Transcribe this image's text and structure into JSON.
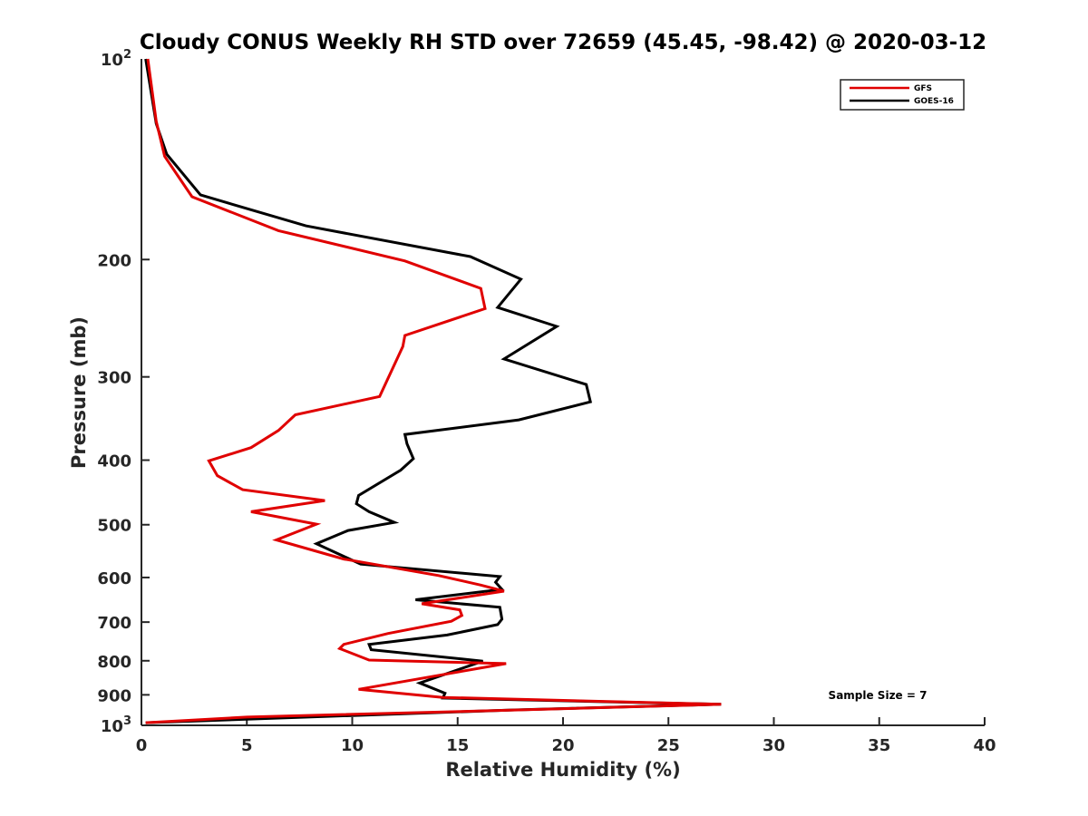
{
  "chart_data": {
    "type": "line",
    "title": "Cloudy CONUS Weekly RH STD over 72659 (45.45, -98.42) @ 2020-03-12",
    "xlabel": "Relative Humidity (%)",
    "ylabel": "Pressure (mb)",
    "xlim": [
      0,
      40
    ],
    "ylim": [
      1000,
      100
    ],
    "yscale": "log",
    "y_reversed": true,
    "grid": false,
    "legend_position": "top-right",
    "x_ticks": [
      0,
      5,
      10,
      15,
      20,
      25,
      30,
      35,
      40
    ],
    "x_tick_labels": [
      "0",
      "5",
      "10",
      "15",
      "20",
      "25",
      "30",
      "35",
      "40"
    ],
    "y_ticks": [
      200,
      300,
      400,
      500,
      600,
      700,
      800,
      900
    ],
    "y_tick_labels": [
      "200",
      "300",
      "400",
      "500",
      "600",
      "700",
      "800",
      "900"
    ],
    "y_end_labels": [
      {
        "value": 100,
        "base": "10",
        "exp": "2"
      },
      {
        "value": 1000,
        "base": "10",
        "exp": "3"
      }
    ],
    "annotation": "Sample Size = 7",
    "series": [
      {
        "name": "GFS",
        "color": "#e00000",
        "x": [
          0.3,
          0.7,
          1.1,
          2.4,
          6.5,
          12.5,
          16.1,
          16.3,
          12.5,
          12.4,
          11.3,
          7.3,
          6.5,
          5.2,
          3.2,
          3.6,
          4.8,
          8.7,
          5.2,
          8.3,
          6.4,
          9.6,
          14.1,
          16.1,
          17.2,
          13.3,
          15.1,
          15.2,
          14.7,
          11.7,
          9.6,
          9.4,
          10.8,
          17.3,
          10.3,
          14.3,
          27.5,
          17.5,
          5.0,
          0.2
        ],
        "y": [
          100,
          124,
          140,
          161,
          181,
          201,
          221,
          237,
          260,
          270,
          321,
          342,
          361,
          383,
          401,
          422,
          443,
          460,
          478,
          499,
          527,
          563,
          596,
          616,
          629,
          657,
          671,
          684,
          698,
          728,
          756,
          767,
          798,
          808,
          883,
          908,
          930,
          949,
          972,
          991
        ]
      },
      {
        "name": "GOES-16",
        "color": "#000000",
        "x": [
          0.2,
          0.7,
          1.2,
          2.8,
          7.8,
          15.6,
          18.0,
          16.9,
          19.7,
          17.2,
          21.1,
          21.3,
          17.9,
          12.5,
          12.6,
          12.9,
          12.3,
          10.3,
          10.2,
          10.8,
          12.0,
          9.8,
          8.3,
          10.4,
          17.0,
          16.8,
          17.1,
          13.0,
          17.0,
          17.1,
          16.9,
          14.5,
          10.8,
          10.9,
          16.2,
          13.2,
          14.4,
          14.3,
          27.5,
          17.7,
          0.2
        ],
        "y": [
          100,
          125,
          139,
          160,
          178,
          198,
          214,
          236,
          252,
          282,
          308,
          327,
          348,
          366,
          378,
          398,
          414,
          452,
          465,
          478,
          496,
          510,
          534,
          573,
          598,
          610,
          625,
          648,
          665,
          693,
          706,
          732,
          756,
          770,
          801,
          864,
          895,
          910,
          930,
          948,
          991
        ]
      }
    ]
  }
}
